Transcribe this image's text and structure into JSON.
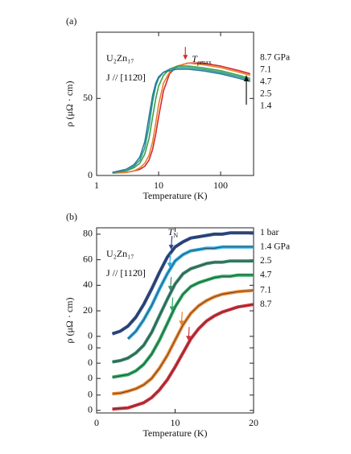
{
  "chart_data": [
    {
      "type": "line",
      "panel": "(a)",
      "sample": "U₂Zn₁₇",
      "direction": "J // [112̄0]",
      "x_label": "Temperature (K)",
      "y_label": "ρ (μΩ · cm)",
      "annotation": "T",
      "annotation_sub": "ρmax",
      "t_rho_max": 27,
      "log_x": true,
      "xlim": [
        1,
        340
      ],
      "xticks": [
        1,
        10,
        100
      ],
      "ylim": [
        0,
        93
      ],
      "yticks": [
        0,
        50
      ],
      "x": [
        1.8,
        3,
        4,
        5,
        6,
        7,
        8,
        9,
        10,
        12,
        15,
        20,
        30,
        50,
        100,
        200,
        300
      ],
      "series": [
        {
          "name": "8.7 GPa",
          "color": "#d62a2a",
          "values": [
            1.5,
            2,
            3,
            4,
            6,
            10,
            17,
            27,
            38,
            55,
            66,
            71,
            73,
            73,
            71,
            68,
            66
          ]
        },
        {
          "name": "7.1",
          "color": "#e8802a",
          "values": [
            1.5,
            2,
            3,
            5,
            8,
            13,
            22,
            34,
            46,
            60,
            67,
            71,
            73,
            72,
            70,
            67,
            65
          ]
        },
        {
          "name": "4.7",
          "color": "#3aa04a",
          "values": [
            2,
            3,
            5,
            8,
            14,
            24,
            38,
            50,
            58,
            65,
            69,
            71,
            71,
            70,
            68,
            65,
            63
          ]
        },
        {
          "name": "2.5",
          "color": "#2a9a8a",
          "values": [
            2,
            3,
            6,
            10,
            18,
            32,
            48,
            58,
            63,
            67,
            69,
            70,
            70,
            69,
            67,
            64,
            62
          ]
        },
        {
          "name": "1.4",
          "color": "#2a7a9a",
          "values": [
            2,
            4,
            7,
            12,
            22,
            38,
            52,
            60,
            64,
            67,
            68,
            69,
            69,
            68,
            66,
            63,
            61
          ]
        }
      ]
    },
    {
      "type": "line",
      "panel": "(b)",
      "sample": "U₂Zn₁₇",
      "direction": "J // [112̄0]",
      "x_label": "Temperature (K)",
      "y_label": "ρ (μΩ · cm)",
      "annotation": "T",
      "annotation_sub": "N",
      "log_x": false,
      "xlim": [
        0,
        20
      ],
      "xticks": [
        0,
        10,
        20
      ],
      "ylim": [
        -60,
        85
      ],
      "yticks": [
        {
          "value": -58,
          "label": "0"
        },
        {
          "value": -46,
          "label": "0"
        },
        {
          "value": -33,
          "label": "0"
        },
        {
          "value": -21,
          "label": "0"
        },
        {
          "value": -9,
          "label": "0"
        },
        0,
        20,
        40,
        60,
        80
      ],
      "x": [
        2,
        3,
        4,
        5,
        6,
        7,
        8,
        9,
        10,
        11,
        12,
        13,
        14,
        15,
        16,
        17,
        18,
        20
      ],
      "series": [
        {
          "name": "1 bar",
          "color": "#2b4a8a",
          "offset": 0,
          "tn": 9.5,
          "values": [
            2,
            4,
            8,
            15,
            25,
            37,
            50,
            62,
            70,
            74,
            77,
            78,
            79,
            80,
            80,
            81,
            81,
            81
          ]
        },
        {
          "name": "1.4 GPa",
          "color": "#2aa8e0",
          "offset": -9,
          "tn": 9.3,
          "values": [
            null,
            null,
            7,
            13,
            22,
            33,
            46,
            58,
            68,
            73,
            76,
            77,
            78,
            78,
            79,
            79,
            79,
            79
          ]
        },
        {
          "name": "2.5",
          "color": "#3a8a70",
          "offset": -21,
          "tn": 9.4,
          "values": [
            1,
            2,
            4,
            8,
            14,
            24,
            37,
            50,
            62,
            70,
            74,
            76,
            78,
            79,
            79,
            80,
            80,
            80
          ]
        },
        {
          "name": "4.7",
          "color": "#2aa860",
          "offset": -33,
          "tn": 9.6,
          "values": [
            1,
            2,
            3,
            6,
            11,
            19,
            30,
            43,
            56,
            66,
            72,
            75,
            77,
            79,
            80,
            80,
            81,
            81
          ]
        },
        {
          "name": "7.1",
          "color": "#e8822a",
          "offset": -46,
          "tn": 10.8,
          "values": [
            1,
            1.5,
            3,
            5,
            8,
            13,
            21,
            31,
            43,
            55,
            64,
            70,
            74,
            77,
            79,
            80,
            81,
            82
          ]
        },
        {
          "name": "8.7",
          "color": "#d9303a",
          "offset": -58,
          "tn": 11.7,
          "values": [
            1,
            1.5,
            2,
            4,
            6,
            10,
            16,
            24,
            34,
            45,
            56,
            64,
            70,
            74,
            77,
            79,
            81,
            83
          ]
        }
      ]
    }
  ]
}
